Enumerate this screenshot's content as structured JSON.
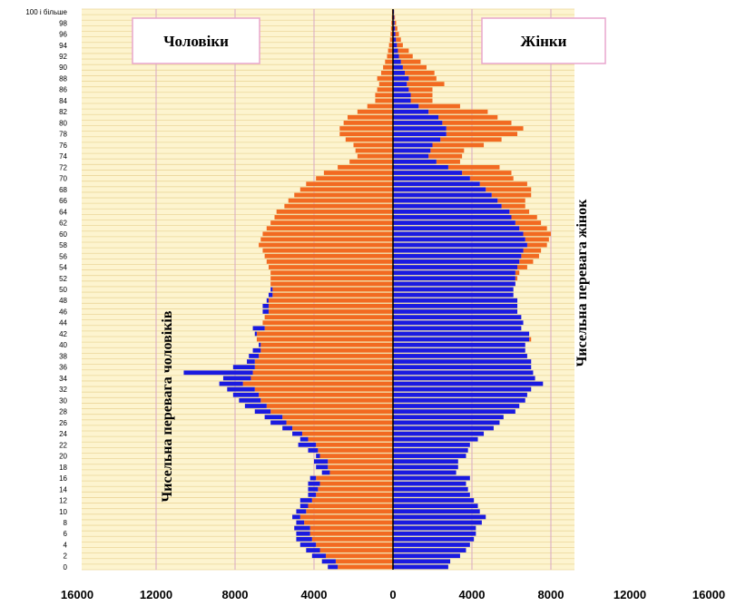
{
  "chart_data": {
    "type": "bar",
    "subtype": "population-pyramid",
    "colors": {
      "background": "#fdf4cf",
      "gridline": "#ebd79a",
      "vertical_gridline": "#d9a8c4",
      "male_female_difference": "#f26a21",
      "common_bar": "#1a1ae0",
      "center_line": "#000000"
    },
    "legend": [
      {
        "name": "Чоловіки",
        "position": "top-left"
      },
      {
        "name": "Жінки",
        "position": "top-right"
      }
    ],
    "annotations": {
      "male_excess": "Чисельна перевага чоловіків",
      "female_excess": "Чисельна перевага жінок"
    },
    "x_ticks": [
      "16000",
      "12000",
      "8000",
      "4000",
      "0",
      "4000",
      "8000",
      "12000",
      "16000"
    ],
    "x_tick_values": [
      -16000,
      -12000,
      -8000,
      -4000,
      0,
      4000,
      8000,
      12000,
      16000
    ],
    "age_tick_labels": [
      "0",
      "2",
      "4",
      "6",
      "8",
      "10",
      "12",
      "14",
      "16",
      "18",
      "20",
      "22",
      "24",
      "26",
      "28",
      "30",
      "32",
      "34",
      "36",
      "38",
      "40",
      "42",
      "44",
      "46",
      "48",
      "50",
      "52",
      "54",
      "56",
      "58",
      "60",
      "62",
      "64",
      "66",
      "68",
      "70",
      "72",
      "74",
      "76",
      "78",
      "80",
      "82",
      "84",
      "86",
      "88",
      "90",
      "92",
      "94",
      "96",
      "98",
      "100 і більше"
    ],
    "ages": [
      0,
      1,
      2,
      3,
      4,
      5,
      6,
      7,
      8,
      9,
      10,
      11,
      12,
      13,
      14,
      15,
      16,
      17,
      18,
      19,
      20,
      21,
      22,
      23,
      24,
      25,
      26,
      27,
      28,
      29,
      30,
      31,
      32,
      33,
      34,
      35,
      36,
      37,
      38,
      39,
      40,
      41,
      42,
      43,
      44,
      45,
      46,
      47,
      48,
      49,
      50,
      51,
      52,
      53,
      54,
      55,
      56,
      57,
      58,
      59,
      60,
      61,
      62,
      63,
      64,
      65,
      66,
      67,
      68,
      69,
      70,
      71,
      72,
      73,
      74,
      75,
      76,
      77,
      78,
      79,
      80,
      81,
      82,
      83,
      84,
      85,
      86,
      87,
      88,
      89,
      90,
      91,
      92,
      93,
      94,
      95,
      96,
      97,
      98,
      99,
      100
    ],
    "male": [
      3300,
      3600,
      4100,
      4400,
      4700,
      4900,
      4900,
      5000,
      4900,
      5100,
      4900,
      4700,
      4700,
      4300,
      4300,
      4300,
      4200,
      3600,
      3900,
      4000,
      3900,
      4300,
      4800,
      4700,
      5100,
      5600,
      6200,
      6500,
      7000,
      7500,
      7800,
      8100,
      8400,
      8800,
      8600,
      10600,
      8100,
      7400,
      7300,
      7100,
      6800,
      6900,
      7000,
      7100,
      6600,
      6500,
      6600,
      6600,
      6400,
      6300,
      6200,
      6200,
      6200,
      6200,
      6300,
      6400,
      6500,
      6600,
      6800,
      6700,
      6600,
      6400,
      6200,
      6000,
      5900,
      5500,
      5300,
      5000,
      4700,
      4400,
      3900,
      3500,
      2800,
      2200,
      1800,
      1900,
      2000,
      2400,
      2700,
      2700,
      2500,
      2300,
      1800,
      1300,
      900,
      900,
      800,
      700,
      800,
      600,
      500,
      400,
      300,
      250,
      200,
      150,
      120,
      100,
      80,
      60,
      50
    ],
    "female": [
      2800,
      2900,
      3400,
      3700,
      3900,
      4100,
      4200,
      4200,
      4500,
      4700,
      4400,
      4300,
      4100,
      3900,
      3800,
      3700,
      3900,
      3200,
      3300,
      3300,
      3700,
      3800,
      3900,
      4300,
      4600,
      5100,
      5400,
      5600,
      6200,
      6400,
      6700,
      6800,
      7000,
      7600,
      7200,
      7100,
      7000,
      7000,
      6800,
      6700,
      6700,
      7000,
      6900,
      6500,
      6600,
      6500,
      6300,
      6300,
      6300,
      6100,
      6100,
      6200,
      6300,
      6400,
      6800,
      7100,
      7400,
      7500,
      7800,
      7900,
      8000,
      7800,
      7500,
      7300,
      6900,
      6700,
      6700,
      7000,
      7000,
      6800,
      6100,
      6000,
      5400,
      3400,
      3500,
      3600,
      4600,
      5500,
      6300,
      6600,
      6000,
      5300,
      4800,
      3400,
      2000,
      2000,
      2000,
      2600,
      2200,
      2100,
      1700,
      1400,
      1000,
      800,
      500,
      400,
      300,
      220,
      160,
      100,
      60
    ],
    "xlim": [
      -16000,
      16000
    ]
  }
}
